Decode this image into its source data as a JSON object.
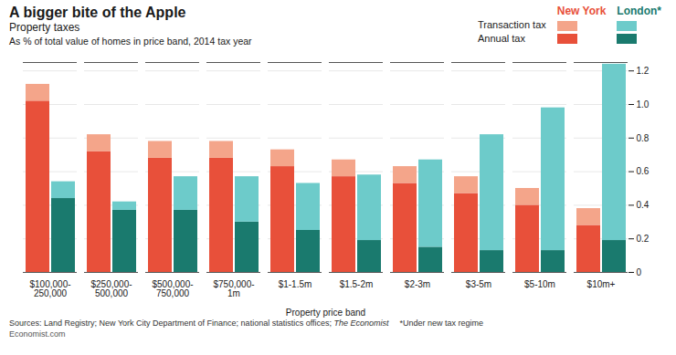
{
  "chart_data": {
    "type": "bar",
    "title": "A bigger bite of the Apple",
    "subtitle": [
      "Property taxes",
      "As % of total value of homes in price band, 2014 tax year"
    ],
    "xlabel": "Property price band",
    "categories": [
      "$100,000-\n250,000",
      "$250,000-\n500,000",
      "$500,000-\n750,000",
      "$750,000-\n1m",
      "$1-1.5m",
      "$1.5-2m",
      "$2-3m",
      "$3-5m",
      "$5-10m",
      "$10m+"
    ],
    "groups": [
      {
        "name": "New York",
        "series": [
          {
            "name": "Annual tax",
            "color": "#e8503a",
            "values": [
              1.02,
              0.72,
              0.68,
              0.68,
              0.63,
              0.57,
              0.53,
              0.47,
              0.4,
              0.28
            ]
          },
          {
            "name": "Transaction tax",
            "color": "#f4a58a",
            "values": [
              0.1,
              0.1,
              0.1,
              0.1,
              0.1,
              0.1,
              0.1,
              0.1,
              0.1,
              0.1
            ]
          }
        ]
      },
      {
        "name": "London*",
        "series": [
          {
            "name": "Annual tax",
            "color": "#1a7a6e",
            "values": [
              0.44,
              0.37,
              0.37,
              0.3,
              0.25,
              0.19,
              0.15,
              0.13,
              0.13,
              0.19
            ]
          },
          {
            "name": "Transaction tax",
            "color": "#6dcbca",
            "values": [
              0.1,
              0.05,
              0.2,
              0.27,
              0.28,
              0.39,
              0.52,
              0.69,
              0.85,
              1.05
            ]
          }
        ]
      }
    ],
    "stacked": true,
    "ylim": [
      0,
      1.25
    ],
    "yticks": [
      0,
      0.2,
      0.4,
      0.6,
      0.8,
      {
        "value": 1,
        "label": "1.0"
      },
      1.2
    ],
    "grid": true,
    "legend": "upper right",
    "annotations": [
      "Sources: Land Registry; New York City Department of Finance; national statistics offices; ",
      "The Economist",
      "*Under new tax regime",
      "Economist.com"
    ]
  }
}
